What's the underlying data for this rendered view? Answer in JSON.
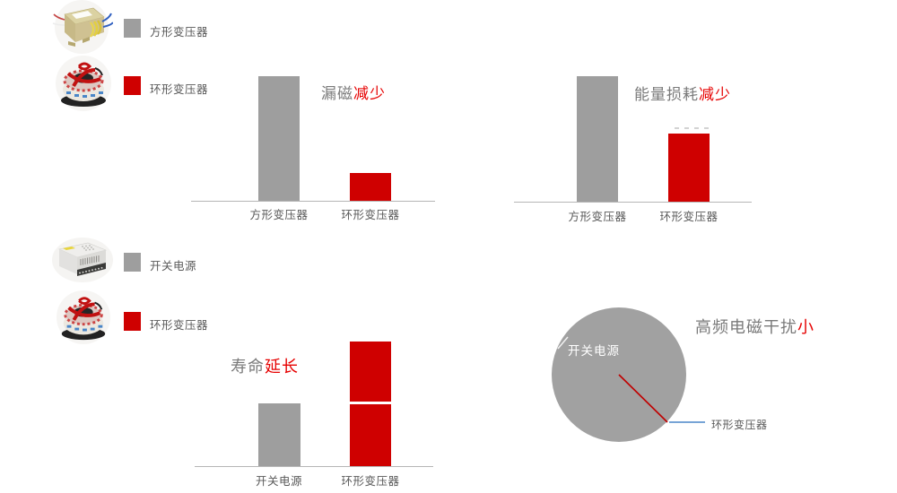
{
  "colors": {
    "bar_gray": "#9e9e9e",
    "bar_red": "#cf0000",
    "title_gray": "#7a7a7a",
    "title_red": "#e60000",
    "axis_line": "#b6b6b6",
    "label_text": "#595959",
    "pie_gray": "#a1a1a1",
    "pie_inner_label": "#ffffff",
    "leader_blue": "#4a86c8",
    "pie_slice_line_red": "#c00000"
  },
  "legend_top": {
    "items": [
      {
        "photo": "square-transformer-photo",
        "swatch_color": "#9e9e9e",
        "label": "方形变压器"
      },
      {
        "photo": "toroidal-transformer-photo",
        "swatch_color": "#cf0000",
        "label": "环形变压器"
      }
    ]
  },
  "legend_bottom": {
    "items": [
      {
        "photo": "switching-power-supply-photo",
        "swatch_color": "#9e9e9e",
        "label": "开关电源"
      },
      {
        "photo": "toroidal-transformer-photo",
        "swatch_color": "#cf0000",
        "label": "环形变压器"
      }
    ]
  },
  "chart_data": [
    {
      "id": "leakage-flux",
      "type": "bar",
      "title": "漏磁减少",
      "title_plain": "漏磁",
      "title_highlight": "减少",
      "categories": [
        "方形变压器",
        "环形变压器"
      ],
      "values": [
        100,
        22
      ],
      "bar_colors": [
        "bar_gray",
        "bar_red"
      ],
      "value_scale": "percent_of_tallest_bar",
      "axis": "baseline_only"
    },
    {
      "id": "energy-loss",
      "type": "bar",
      "title": "能量损耗减少",
      "title_plain": "能量损耗",
      "title_highlight": "减少",
      "categories": [
        "方形变压器",
        "环形变压器"
      ],
      "values": [
        100,
        54
      ],
      "bar_colors": [
        "bar_gray",
        "bar_red"
      ],
      "value_scale": "percent_of_tallest_bar",
      "axis": "baseline_only"
    },
    {
      "id": "lifespan",
      "type": "bar",
      "title": "寿命延长",
      "title_plain": "寿命",
      "title_highlight": "延长",
      "categories": [
        "开关电源",
        "环形变压器"
      ],
      "values": [
        50,
        100
      ],
      "bar_colors": [
        "bar_gray",
        "bar_red"
      ],
      "stacked_segments": [
        1,
        2
      ],
      "value_scale": "percent_of_tallest_bar",
      "axis": "baseline_only"
    },
    {
      "id": "emi",
      "type": "pie",
      "title": "高频电磁干扰小",
      "title_plain": "高频电磁干扰",
      "title_highlight": "小",
      "slices": [
        {
          "label": "开关电源",
          "value": 99,
          "color": "pie_gray",
          "label_position": "inside"
        },
        {
          "label": "环形变压器",
          "value": 1,
          "color": "bar_red",
          "label_position": "outside-right-leader"
        }
      ],
      "legend_position": "none"
    }
  ]
}
